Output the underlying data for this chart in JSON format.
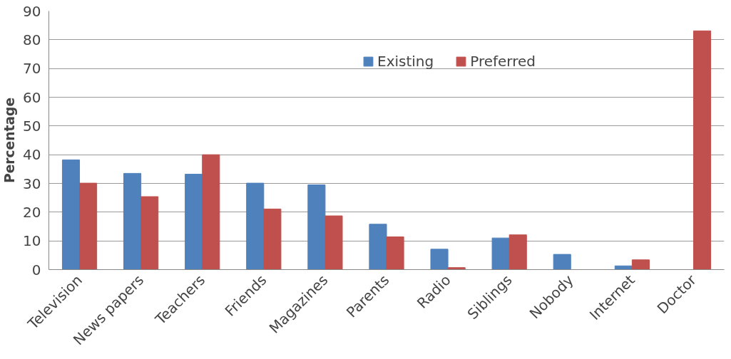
{
  "chart_data": {
    "type": "bar",
    "ylabel": "Percentage",
    "categories": [
      "Television",
      "News papers",
      "Teachers",
      "Friends",
      "Magazines",
      "Parents",
      "Radio",
      "Siblings",
      "Nobody",
      "Internet",
      "Doctor"
    ],
    "series": [
      {
        "name": "Existing",
        "color": "#4f81bd",
        "values": [
          38.2,
          33.5,
          33.2,
          30.1,
          29.5,
          15.8,
          7.1,
          11.0,
          5.3,
          1.3,
          null
        ]
      },
      {
        "name": "Preferred",
        "color": "#c0504d",
        "values": [
          30.1,
          25.4,
          40.0,
          21.1,
          18.7,
          11.4,
          0.7,
          12.1,
          null,
          3.4,
          83.1
        ]
      }
    ],
    "ylim": [
      0,
      90
    ],
    "yticks": [
      0,
      10,
      20,
      30,
      40,
      50,
      60,
      70,
      80,
      90
    ],
    "grid": "y",
    "legend": "top"
  }
}
